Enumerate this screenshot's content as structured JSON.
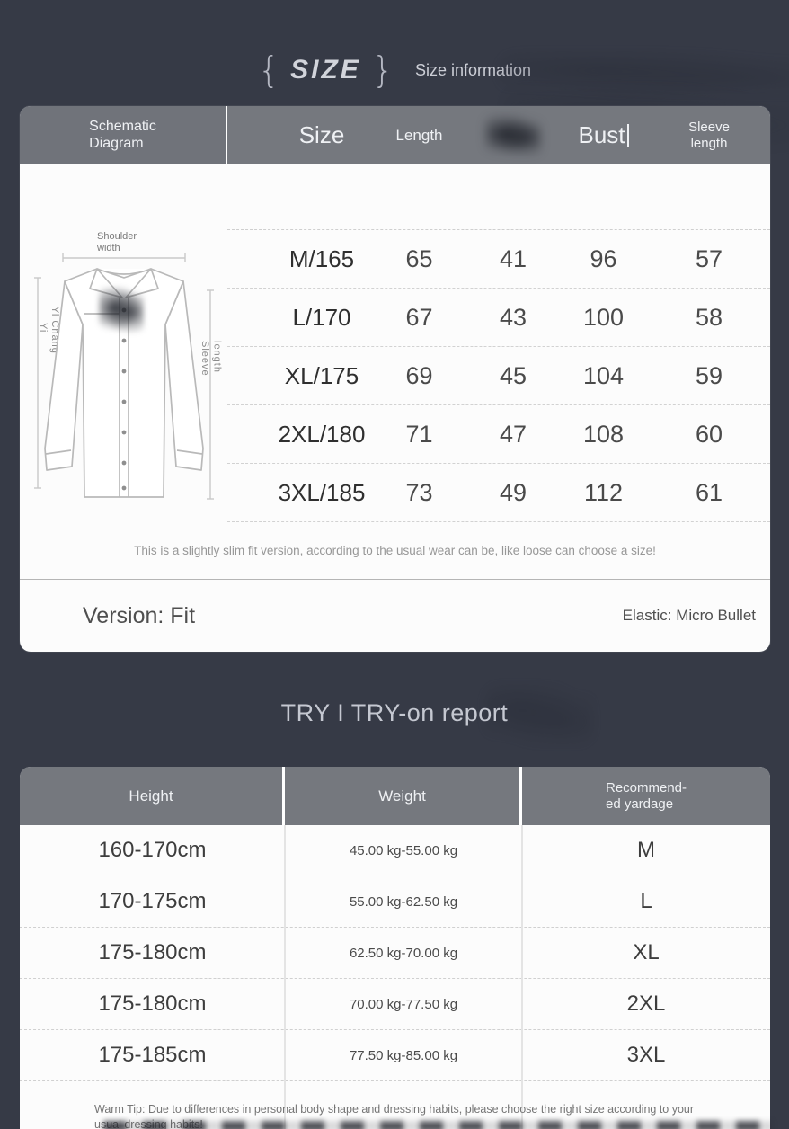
{
  "colors": {
    "page_bg": "#363a46",
    "table_header_gray": "#75787e",
    "card_bg": "#fcfcfc",
    "header_text": "#eff1f4",
    "heading_text": "#c5c8d1"
  },
  "header": {
    "brace_left": "{",
    "brand": "SIZE",
    "brace_right": "}",
    "title": "Size information"
  },
  "size_chart": {
    "corner_header": "Schematic\nDiagram",
    "columns": [
      "Size",
      "Length",
      "",
      "Bust",
      "Sleeve\nlength"
    ],
    "schematic": {
      "shoulder_label": "Shoulder\nwidth",
      "left_label_a": "Yi",
      "left_label_b": "Yi Chang",
      "right_label": "Sleeve\nlength"
    },
    "rows": [
      {
        "size": "M/165",
        "length": "65",
        "shoulder": "41",
        "bust": "96",
        "sleeve": "57"
      },
      {
        "size": "L/170",
        "length": "67",
        "shoulder": "43",
        "bust": "100",
        "sleeve": "58"
      },
      {
        "size": "XL/175",
        "length": "69",
        "shoulder": "45",
        "bust": "104",
        "sleeve": "59"
      },
      {
        "size": "2XL/180",
        "length": "71",
        "shoulder": "47",
        "bust": "108",
        "sleeve": "60"
      },
      {
        "size": "3XL/185",
        "length": "73",
        "shoulder": "49",
        "bust": "112",
        "sleeve": "61"
      }
    ],
    "note": "This is a slightly slim fit version, according to the usual wear can be, like loose can choose a size!",
    "version_label": "Version: Fit",
    "elastic_label": "Elastic: Micro Bullet"
  },
  "try_on": {
    "heading": "TRY I TRY-on report",
    "columns": [
      "Height",
      "Weight",
      "Recommend-\ned yardage"
    ],
    "rows": [
      {
        "height": "160-170cm",
        "weight": "45.00 kg-55.00 kg",
        "size": "M"
      },
      {
        "height": "170-175cm",
        "weight": "55.00 kg-62.50 kg",
        "size": "L"
      },
      {
        "height": "175-180cm",
        "weight": "62.50 kg-70.00 kg",
        "size": "XL"
      },
      {
        "height": "175-180cm",
        "weight": "70.00 kg-77.50 kg",
        "size": "2XL"
      },
      {
        "height": "175-185cm",
        "weight": "77.50 kg-85.00 kg",
        "size": "3XL"
      }
    ],
    "warm_tip": "Warm Tip: Due to differences in personal body shape and dressing habits, please choose the right size according to your usual dressing habits!"
  }
}
